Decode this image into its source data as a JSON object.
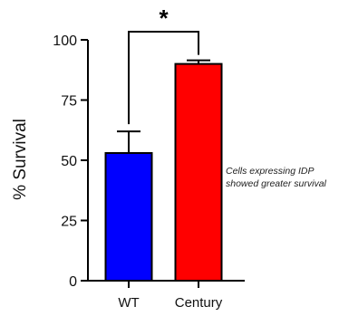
{
  "chart_data": {
    "type": "bar",
    "categories": [
      "WT",
      "Century"
    ],
    "series": [
      {
        "values": [
          53,
          90
        ],
        "errors": [
          9,
          1.5
        ],
        "colors": [
          "#0000ff",
          "#ff0000"
        ]
      }
    ],
    "ylabel": "% Survival",
    "ylim": [
      0,
      100
    ],
    "yticks": [
      "0",
      "25",
      "50",
      "75",
      "100"
    ],
    "significance": {
      "symbol": "*",
      "between": [
        "WT",
        "Century"
      ]
    },
    "annotation": [
      "Cells expressing IDP",
      "showed greater survival"
    ]
  }
}
